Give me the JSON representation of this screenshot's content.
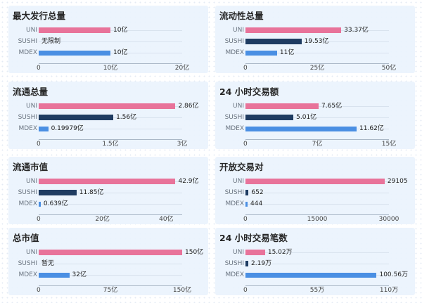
{
  "colors": {
    "uni": "#e8739a",
    "sushi": "#1f3c62",
    "mdex": "#4a8fe3"
  },
  "chart_data": [
    {
      "type": "bar",
      "orientation": "horizontal",
      "title": "最大发行总量",
      "categories": [
        "UNI",
        "SUSHI",
        "MDEX"
      ],
      "values": [
        10,
        null,
        10
      ],
      "value_labels": [
        "10亿",
        "无限制",
        "10亿"
      ],
      "xlim": [
        0,
        20
      ],
      "ticks": [
        "0",
        "10亿",
        "20亿"
      ]
    },
    {
      "type": "bar",
      "orientation": "horizontal",
      "title": "流动性总量",
      "categories": [
        "UNI",
        "SUSHI",
        "MDEX"
      ],
      "values": [
        33.37,
        19.53,
        11
      ],
      "value_labels": [
        "33.37亿",
        "19.53亿",
        "11亿"
      ],
      "xlim": [
        0,
        50
      ],
      "ticks": [
        "0",
        "25亿",
        "50亿"
      ]
    },
    {
      "type": "bar",
      "orientation": "horizontal",
      "title": "流通总量",
      "categories": [
        "UNI",
        "SUSHI",
        "MDEX"
      ],
      "values": [
        2.86,
        1.56,
        0.19979
      ],
      "value_labels": [
        "2.86亿",
        "1.56亿",
        "0.19979亿"
      ],
      "xlim": [
        0,
        3
      ],
      "ticks": [
        "0",
        "1.5亿",
        "3亿"
      ]
    },
    {
      "type": "bar",
      "orientation": "horizontal",
      "title": "24 小时交易额",
      "categories": [
        "UNI",
        "SUSHI",
        "MDEX"
      ],
      "values": [
        7.65,
        5.01,
        11.62
      ],
      "value_labels": [
        "7.65亿",
        "5.01亿",
        "11.62亿"
      ],
      "xlim": [
        0,
        15
      ],
      "ticks": [
        "0",
        "7亿",
        "15亿"
      ]
    },
    {
      "type": "bar",
      "orientation": "horizontal",
      "title": "流通市值",
      "categories": [
        "UNI",
        "SUSHI",
        "MDEX"
      ],
      "values": [
        42.9,
        11.85,
        0.639
      ],
      "value_labels": [
        "42.9亿",
        "11.85亿",
        "0.639亿"
      ],
      "xlim": [
        0,
        45
      ],
      "ticks": [
        "0",
        "20亿",
        "40亿"
      ],
      "tick_values": [
        0,
        20,
        40
      ]
    },
    {
      "type": "bar",
      "orientation": "horizontal",
      "title": "开放交易对",
      "categories": [
        "UNI",
        "SUSHI",
        "MDEX"
      ],
      "values": [
        29105,
        652,
        444
      ],
      "value_labels": [
        "29105",
        "652",
        "444"
      ],
      "xlim": [
        0,
        30000
      ],
      "ticks": [
        "0",
        "15000",
        "30000"
      ]
    },
    {
      "type": "bar",
      "orientation": "horizontal",
      "title": "总市值",
      "categories": [
        "UNI",
        "SUSHI",
        "MDEX"
      ],
      "values": [
        150,
        null,
        32
      ],
      "value_labels": [
        "150亿",
        "暂无",
        "32亿"
      ],
      "xlim": [
        0,
        150
      ],
      "ticks": [
        "0",
        "75亿",
        "150亿"
      ]
    },
    {
      "type": "bar",
      "orientation": "horizontal",
      "title": "24 小时交易笔数",
      "categories": [
        "UNI",
        "SUSHI",
        "MDEX"
      ],
      "values": [
        15.02,
        2.19,
        100.56
      ],
      "value_labels": [
        "15.02万",
        "2.19万",
        "100.56万"
      ],
      "xlim": [
        0,
        110
      ],
      "ticks": [
        "0",
        "55万",
        "110万"
      ]
    }
  ]
}
